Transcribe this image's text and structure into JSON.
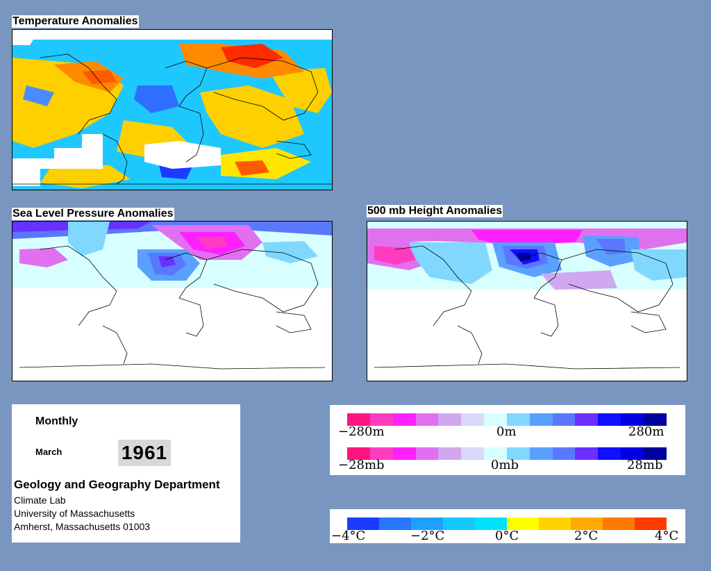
{
  "panels": {
    "temperature": {
      "title": "Temperature Anomalies"
    },
    "slp": {
      "title": "Sea Level Pressure Anomalies"
    },
    "height500": {
      "title": "500 mb Height Anomalies"
    }
  },
  "info": {
    "period": "Monthly",
    "month": "March",
    "year": "1961",
    "department": "Geology and Geography Department",
    "line1": "Climate Lab",
    "line2": "University of Massachusetts",
    "line3": "Amherst, Massachusetts 01003"
  },
  "legends": {
    "height": {
      "left": "−280m",
      "center": "0m",
      "right": "280m"
    },
    "pressure": {
      "left": "−28mb",
      "center": "0mb",
      "right": "28mb"
    },
    "temperature": {
      "t1": "−4°C",
      "t2": "−2°C",
      "t3": "0°C",
      "t4": "2°C",
      "t5": "4°C"
    }
  },
  "colors": {
    "background": "#7896c0",
    "anomaly_scale": [
      "#ff1480",
      "#ff3cc0",
      "#ff20ff",
      "#e070f0",
      "#d0a8f0",
      "#d8d8f8",
      "#d8ffff",
      "#80d8ff",
      "#5aa0ff",
      "#5a78ff",
      "#6a30ff",
      "#1010ff",
      "#0000e0",
      "#00009c"
    ],
    "temperature_scale": [
      "#1a3cff",
      "#2878ff",
      "#1ea0ff",
      "#14c8ff",
      "#00e0ff",
      "#ffff00",
      "#ffd200",
      "#ffaa00",
      "#ff7a00",
      "#ff3c00"
    ]
  }
}
